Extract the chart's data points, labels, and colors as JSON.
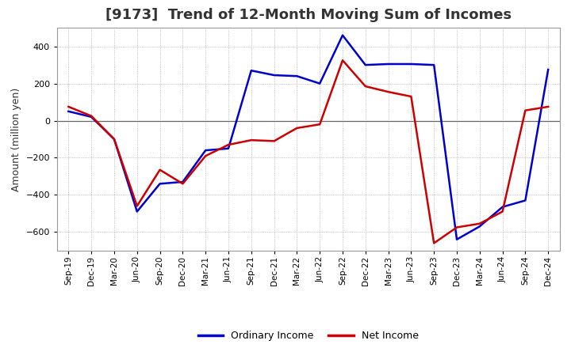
{
  "title": "[9173]  Trend of 12-Month Moving Sum of Incomes",
  "ylabel": "Amount (million yen)",
  "x_labels": [
    "Sep-19",
    "Dec-19",
    "Mar-20",
    "Jun-20",
    "Sep-20",
    "Dec-20",
    "Mar-21",
    "Jun-21",
    "Sep-21",
    "Dec-21",
    "Mar-22",
    "Jun-22",
    "Sep-22",
    "Dec-22",
    "Mar-23",
    "Jun-23",
    "Sep-23",
    "Dec-23",
    "Mar-24",
    "Jun-24",
    "Sep-24",
    "Dec-24"
  ],
  "ordinary_income": [
    50,
    20,
    -100,
    -490,
    -340,
    -330,
    -160,
    -150,
    270,
    245,
    240,
    200,
    460,
    300,
    305,
    305,
    300,
    -640,
    -570,
    -465,
    -430,
    275
  ],
  "net_income": [
    75,
    25,
    -100,
    -460,
    -265,
    -340,
    -190,
    -130,
    -105,
    -110,
    -40,
    -20,
    325,
    185,
    155,
    130,
    -660,
    -575,
    -555,
    -490,
    55,
    75
  ],
  "ordinary_color": "#0000cc",
  "net_color": "#cc0000",
  "ylim": [
    -700,
    500
  ],
  "yticks": [
    -600,
    -400,
    -200,
    0,
    200,
    400
  ],
  "background_color": "#ffffff",
  "plot_bg_color": "#ffffff",
  "grid_color": "#999999",
  "linewidth": 1.8,
  "legend_labels": [
    "Ordinary Income",
    "Net Income"
  ],
  "title_color": "#333333",
  "title_fontsize": 13
}
